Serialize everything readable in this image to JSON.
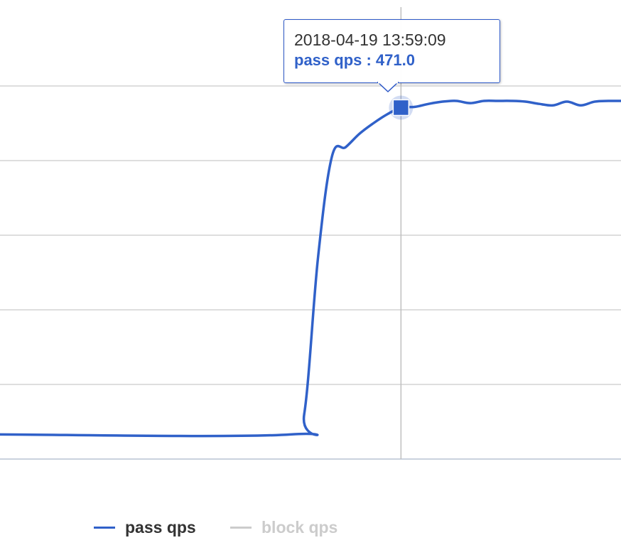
{
  "chart_data": {
    "type": "line",
    "title": "",
    "xlabel": "",
    "ylabel": "",
    "ylim": [
      0,
      525
    ],
    "grid": true,
    "legend_placement": "bottom",
    "x_unit": "seconds",
    "series": [
      {
        "name": "pass qps",
        "color": "#3061c9",
        "points": [
          [
            0,
            33
          ],
          [
            21,
            33
          ],
          [
            22,
            60
          ],
          [
            23,
            270
          ],
          [
            24,
            405
          ],
          [
            25,
            418
          ],
          [
            26,
            436
          ],
          [
            27,
            450
          ],
          [
            28,
            462
          ],
          [
            29,
            471
          ],
          [
            30,
            472
          ],
          [
            31,
            476
          ],
          [
            32,
            479
          ],
          [
            33,
            480
          ],
          [
            34,
            477
          ],
          [
            35,
            480
          ],
          [
            36,
            480
          ],
          [
            37,
            480
          ],
          [
            38,
            479
          ],
          [
            39,
            476
          ],
          [
            40,
            474
          ],
          [
            41,
            479
          ],
          [
            42,
            474
          ],
          [
            43,
            479
          ],
          [
            44,
            480
          ],
          [
            45,
            480
          ],
          [
            46,
            481
          ]
        ]
      },
      {
        "name": "block qps",
        "color": "#cccccc",
        "visible": false,
        "points": []
      }
    ],
    "crosshair_x": 29
  },
  "tooltip": {
    "timestamp": "2018-04-19 13:59:09",
    "label": "pass qps : 471.0",
    "color": "#3061c9"
  },
  "legend": {
    "items": [
      {
        "label": "pass qps",
        "color": "#3061c9",
        "text_color": "#333333",
        "active": true
      },
      {
        "label": "block qps",
        "color": "#cccccc",
        "text_color": "#cccccc",
        "active": false
      }
    ]
  }
}
